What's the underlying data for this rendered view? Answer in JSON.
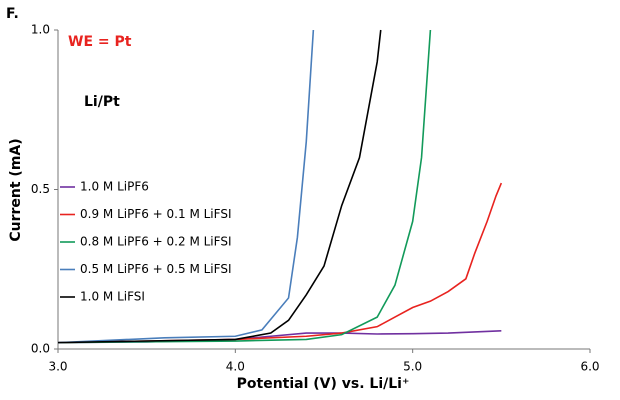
{
  "chart_data": {
    "type": "line",
    "title": "F.",
    "annotations": [
      {
        "text": "WE = Pt",
        "color": "#e8231f"
      },
      {
        "text": "Li/Pt",
        "color": "#000000"
      }
    ],
    "xlabel": "Potential (V) vs. Li/Li⁺",
    "ylabel": "Current (mA)",
    "xlim": [
      3.0,
      6.0
    ],
    "ylim": [
      0.0,
      1.0
    ],
    "xticks": [
      {
        "value": 3,
        "label": "3.0"
      },
      {
        "value": 4,
        "label": "4.0"
      },
      {
        "value": 5,
        "label": "5.0"
      },
      {
        "value": 6,
        "label": "6.0"
      }
    ],
    "yticks": [
      {
        "value": 0,
        "label": "0.0"
      },
      {
        "value": 0.5,
        "label": "0.5"
      },
      {
        "value": 1,
        "label": "1.0"
      }
    ],
    "grid": false,
    "legend": "left",
    "series": [
      {
        "name": "1.0 M LiPF6",
        "color": "#7030a0",
        "x": [
          3.0,
          3.5,
          4.0,
          4.2,
          4.4,
          4.6,
          4.8,
          5.0,
          5.2,
          5.5
        ],
        "values": [
          0.02,
          0.022,
          0.03,
          0.04,
          0.05,
          0.05,
          0.047,
          0.048,
          0.05,
          0.057
        ]
      },
      {
        "name": "0.9 M LiPF6 + 0.1 M LiFSI",
        "color": "#e8231f",
        "x": [
          3.0,
          4.0,
          4.4,
          4.6,
          4.8,
          4.9,
          5.0,
          5.1,
          5.2,
          5.3,
          5.35,
          5.42,
          5.47,
          5.5
        ],
        "values": [
          0.02,
          0.03,
          0.04,
          0.05,
          0.07,
          0.1,
          0.13,
          0.15,
          0.18,
          0.22,
          0.3,
          0.4,
          0.48,
          0.52
        ]
      },
      {
        "name": "0.8 M LiPF6 + 0.2 M LiFSI",
        "color": "#129a5a",
        "x": [
          3.0,
          4.0,
          4.4,
          4.6,
          4.8,
          4.9,
          5.0,
          5.05,
          5.1
        ],
        "values": [
          0.02,
          0.025,
          0.03,
          0.045,
          0.1,
          0.2,
          0.4,
          0.6,
          1.0
        ]
      },
      {
        "name": "0.5 M LiPF6 + 0.5 M LiFSI",
        "color": "#4a7ebb",
        "x": [
          3.0,
          3.6,
          4.0,
          4.15,
          4.3,
          4.35,
          4.4,
          4.44
        ],
        "values": [
          0.02,
          0.035,
          0.04,
          0.06,
          0.16,
          0.35,
          0.65,
          1.0
        ]
      },
      {
        "name": "1.0 M LiFSI",
        "color": "#000000",
        "x": [
          3.0,
          4.0,
          4.2,
          4.3,
          4.4,
          4.5,
          4.6,
          4.7,
          4.8,
          4.82
        ],
        "values": [
          0.02,
          0.03,
          0.05,
          0.09,
          0.17,
          0.26,
          0.45,
          0.6,
          0.9,
          1.0
        ]
      }
    ]
  }
}
